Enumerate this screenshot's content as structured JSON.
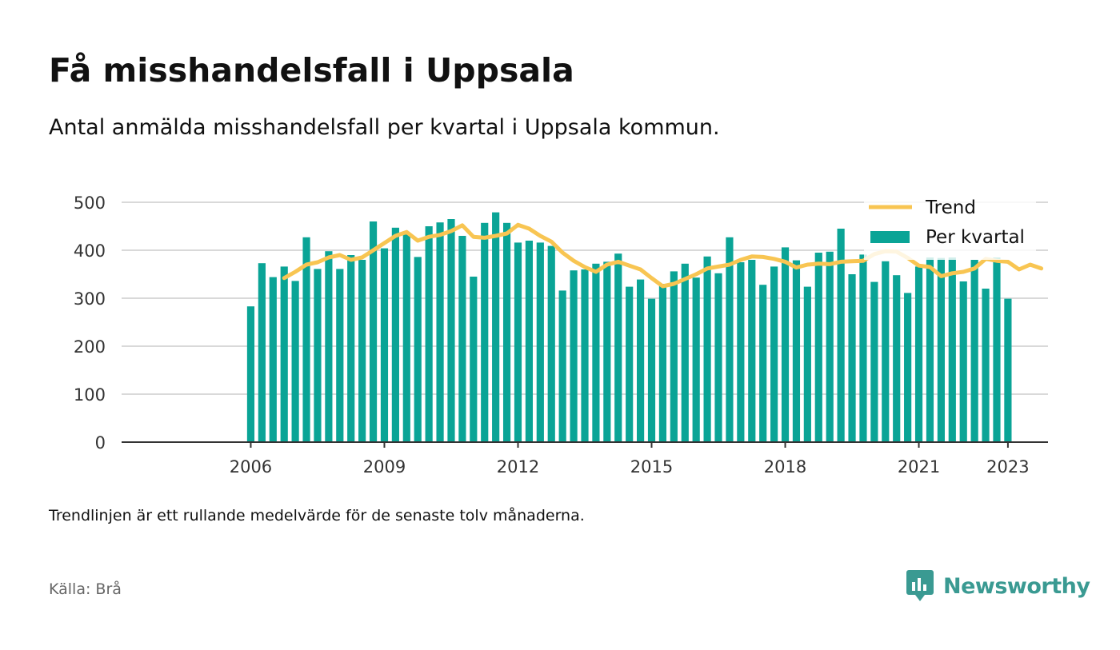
{
  "header": {
    "title": "Få misshandelsfall i Uppsala",
    "subtitle": "Antal anmälda misshandelsfall per kvartal i Uppsala kommun."
  },
  "footer": {
    "note": "Trendlinjen är ett rullande medelvärde för de senaste tolv månaderna.",
    "source": "Källa: Brå",
    "brand": "Newsworthy"
  },
  "colors": {
    "bars": "#0aa496",
    "trend": "#f8c552",
    "grid": "#d9d9d9",
    "axis": "#333333",
    "brand": "#3a9a92"
  },
  "chart_data": {
    "type": "bar",
    "x_start": 2006,
    "x_step": 0.25,
    "xticks": [
      2006,
      2009,
      2012,
      2015,
      2018,
      2021,
      2023
    ],
    "xtick_labels": [
      "2006",
      "2009",
      "2012",
      "2015",
      "2018",
      "2021",
      "2023"
    ],
    "xlim": [
      2003.1,
      2023.9
    ],
    "ylim": [
      0,
      500
    ],
    "yticks": [
      0,
      100,
      200,
      300,
      400,
      500
    ],
    "ytick_labels": [
      "0",
      "100",
      "200",
      "300",
      "400",
      "500"
    ],
    "grid": true,
    "legend_position": "top-right",
    "series": [
      {
        "name": "Per kvartal",
        "type": "bar",
        "values": [
          283,
          373,
          344,
          366,
          336,
          427,
          361,
          398,
          361,
          390,
          380,
          460,
          404,
          447,
          436,
          386,
          450,
          458,
          465,
          430,
          345,
          457,
          479,
          457,
          416,
          420,
          416,
          409,
          316,
          358,
          360,
          372,
          376,
          393,
          324,
          339,
          299,
          330,
          356,
          372,
          343,
          387,
          352,
          427,
          375,
          380,
          328,
          366,
          406,
          379,
          324,
          395,
          397,
          445,
          350,
          391,
          334,
          377,
          348,
          311,
          366,
          385,
          384,
          385,
          335,
          380,
          320,
          385,
          299
        ]
      },
      {
        "name": "Trend",
        "type": "line",
        "x_start": 2006.75,
        "values": [
          342,
          355,
          370,
          375,
          385,
          390,
          380,
          385,
          400,
          415,
          430,
          438,
          420,
          428,
          432,
          440,
          452,
          428,
          426,
          430,
          435,
          453,
          445,
          430,
          418,
          395,
          378,
          365,
          355,
          370,
          376,
          368,
          360,
          342,
          325,
          330,
          340,
          350,
          362,
          366,
          370,
          380,
          387,
          386,
          382,
          376,
          364,
          370,
          372,
          371,
          376,
          377,
          378,
          392,
          398,
          397,
          384,
          368,
          365,
          346,
          352,
          355,
          362,
          382,
          378,
          376,
          360,
          370,
          362
        ]
      }
    ]
  }
}
